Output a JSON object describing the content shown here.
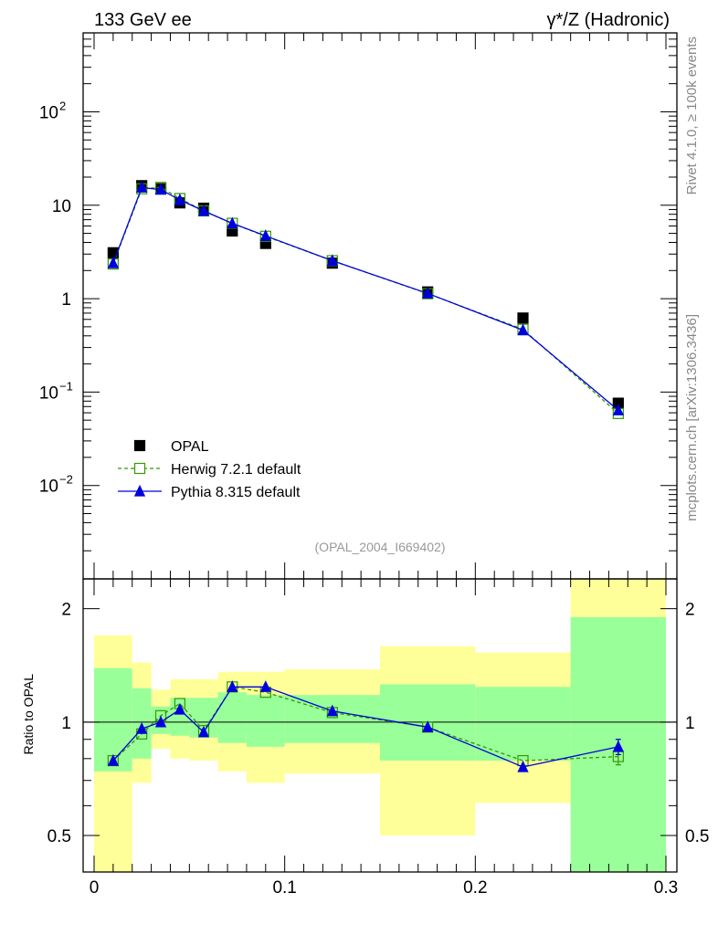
{
  "header": {
    "left": "133 GeV ee",
    "right": "γ*/Z (Hadronic)"
  },
  "side_labels": {
    "rivet": "Rivet 4.1.0, ≥ 100k events",
    "mcplots": "mcplots.cern.ch [arXiv:1306.3436]"
  },
  "analysis_tag": "(OPAL_2004_I669402)",
  "chart_data": [
    {
      "type": "scatter",
      "panel": "main",
      "yscale": "log",
      "xlim": [
        0,
        0.3
      ],
      "ylim": [
        0.001,
        700
      ],
      "xticks": [
        "0",
        "0.1",
        "0.2",
        "0.3"
      ],
      "yticks": [
        {
          "value": 0.01,
          "base": "10",
          "exp": "−2"
        },
        {
          "value": 0.1,
          "base": "10",
          "exp": "−1"
        },
        {
          "value": 1,
          "base": "1",
          "exp": ""
        },
        {
          "value": 10,
          "base": "10",
          "exp": ""
        },
        {
          "value": 100,
          "base": "10",
          "exp": "2"
        }
      ],
      "legend_position": "bottom-left",
      "series": [
        {
          "name": "OPAL",
          "style": "data",
          "color": "#000000",
          "x": [
            0.01,
            0.025,
            0.035,
            0.045,
            0.0575,
            0.0725,
            0.09,
            0.125,
            0.175,
            0.225,
            0.275
          ],
          "y": [
            3.1,
            16.2,
            15.0,
            10.6,
            9.3,
            5.3,
            3.9,
            2.4,
            1.18,
            0.62,
            0.076
          ]
        },
        {
          "name": "Herwig 7.2.1 default",
          "style": "dashed-open-square",
          "color": "#339900",
          "x": [
            0.01,
            0.025,
            0.035,
            0.045,
            0.0575,
            0.0725,
            0.09,
            0.125,
            0.175,
            0.225,
            0.275
          ],
          "y": [
            2.35,
            15.0,
            15.5,
            11.8,
            8.7,
            6.4,
            4.65,
            2.55,
            1.13,
            0.47,
            0.059
          ]
        },
        {
          "name": "Pythia 8.315 default",
          "style": "solid-triangle",
          "color": "#0000dd",
          "x": [
            0.01,
            0.025,
            0.035,
            0.045,
            0.0575,
            0.0725,
            0.09,
            0.125,
            0.175,
            0.225,
            0.275
          ],
          "y": [
            2.4,
            15.5,
            14.7,
            11.4,
            8.7,
            6.4,
            4.7,
            2.55,
            1.14,
            0.46,
            0.064
          ]
        }
      ]
    },
    {
      "type": "scatter",
      "panel": "ratio",
      "ylabel": "Ratio to OPAL",
      "yscale": "log",
      "xlim": [
        0,
        0.3
      ],
      "ylim": [
        0.4,
        2.4
      ],
      "yticks": [
        "0.5",
        "1",
        "2"
      ],
      "reference_line": 1,
      "bins": [
        {
          "lo": 0.0,
          "hi": 0.02,
          "inner": [
            0.74,
            1.39
          ],
          "outer": [
            0.4,
            1.7
          ]
        },
        {
          "lo": 0.02,
          "hi": 0.03,
          "inner": [
            0.8,
            1.23
          ],
          "outer": [
            0.69,
            1.44
          ]
        },
        {
          "lo": 0.03,
          "hi": 0.04,
          "inner": [
            0.93,
            1.1
          ],
          "outer": [
            0.85,
            1.22
          ]
        },
        {
          "lo": 0.04,
          "hi": 0.05,
          "inner": [
            0.92,
            1.16
          ],
          "outer": [
            0.8,
            1.3
          ]
        },
        {
          "lo": 0.05,
          "hi": 0.065,
          "inner": [
            0.91,
            1.16
          ],
          "outer": [
            0.79,
            1.3
          ]
        },
        {
          "lo": 0.065,
          "hi": 0.08,
          "inner": [
            0.88,
            1.2
          ],
          "outer": [
            0.74,
            1.36
          ]
        },
        {
          "lo": 0.08,
          "hi": 0.1,
          "inner": [
            0.86,
            1.18
          ],
          "outer": [
            0.69,
            1.36
          ]
        },
        {
          "lo": 0.1,
          "hi": 0.15,
          "inner": [
            0.88,
            1.18
          ],
          "outer": [
            0.73,
            1.38
          ]
        },
        {
          "lo": 0.15,
          "hi": 0.2,
          "inner": [
            0.79,
            1.26
          ],
          "outer": [
            0.5,
            1.59
          ]
        },
        {
          "lo": 0.2,
          "hi": 0.25,
          "inner": [
            0.79,
            1.24
          ],
          "outer": [
            0.61,
            1.53
          ]
        },
        {
          "lo": 0.25,
          "hi": 0.3,
          "inner": [
            0.4,
            1.9
          ],
          "outer": [
            0.4,
            2.4
          ]
        }
      ],
      "series": [
        {
          "name": "Herwig 7.2.1 default",
          "style": "dashed-open-square",
          "color": "#339900",
          "x": [
            0.01,
            0.025,
            0.035,
            0.045,
            0.0575,
            0.0725,
            0.09,
            0.125,
            0.175,
            0.225,
            0.275
          ],
          "y": [
            0.79,
            0.93,
            1.04,
            1.12,
            0.95,
            1.24,
            1.2,
            1.06,
            0.97,
            0.79,
            0.81
          ],
          "yerr": [
            0,
            0,
            0,
            0,
            0,
            0,
            0,
            0,
            0,
            0,
            0.04
          ]
        },
        {
          "name": "Pythia 8.315 default",
          "style": "solid-triangle",
          "color": "#0000dd",
          "x": [
            0.01,
            0.025,
            0.035,
            0.045,
            0.0575,
            0.0725,
            0.09,
            0.125,
            0.175,
            0.225,
            0.275
          ],
          "y": [
            0.79,
            0.96,
            1.0,
            1.08,
            0.94,
            1.24,
            1.24,
            1.07,
            0.97,
            0.76,
            0.86
          ],
          "yerr": [
            0,
            0,
            0,
            0,
            0,
            0,
            0,
            0,
            0,
            0,
            0.04
          ]
        }
      ]
    }
  ],
  "colors": {
    "inner_band": "#99ff99",
    "outer_band": "#ffff99",
    "reference_line": "#000000"
  }
}
